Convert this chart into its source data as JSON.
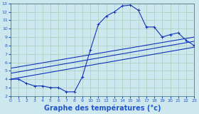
{
  "xlabel": "Graphe des températures (°c)",
  "bg_color": "#cce8ee",
  "grid_color": "#aaccbb",
  "line_color": "#1133bb",
  "ylim": [
    2,
    13
  ],
  "xlim": [
    0,
    23
  ],
  "yticks": [
    2,
    3,
    4,
    5,
    6,
    7,
    8,
    9,
    10,
    11,
    12,
    13
  ],
  "xticks": [
    0,
    1,
    2,
    3,
    4,
    5,
    6,
    7,
    8,
    9,
    10,
    11,
    12,
    13,
    14,
    15,
    16,
    17,
    18,
    19,
    20,
    21,
    22,
    23
  ],
  "main_x": [
    0,
    1,
    2,
    3,
    4,
    5,
    6,
    7,
    8,
    9,
    10,
    11,
    12,
    13,
    14,
    15,
    16,
    17,
    18,
    19,
    20,
    21,
    22,
    23
  ],
  "main_y": [
    4.0,
    4.0,
    3.5,
    3.2,
    3.2,
    3.0,
    3.0,
    2.5,
    2.5,
    4.3,
    7.5,
    10.5,
    11.5,
    12.0,
    12.7,
    12.8,
    12.2,
    10.2,
    10.2,
    9.0,
    9.3,
    9.5,
    8.6,
    8.0
  ],
  "line1_x": [
    0,
    23
  ],
  "line1_y": [
    4.0,
    7.8
  ],
  "line2_x": [
    0,
    23
  ],
  "line2_y": [
    4.7,
    8.5
  ],
  "line3_x": [
    0,
    23
  ],
  "line3_y": [
    5.3,
    9.0
  ],
  "xlabel_color": "#2255cc",
  "xlabel_fontsize": 7.0
}
